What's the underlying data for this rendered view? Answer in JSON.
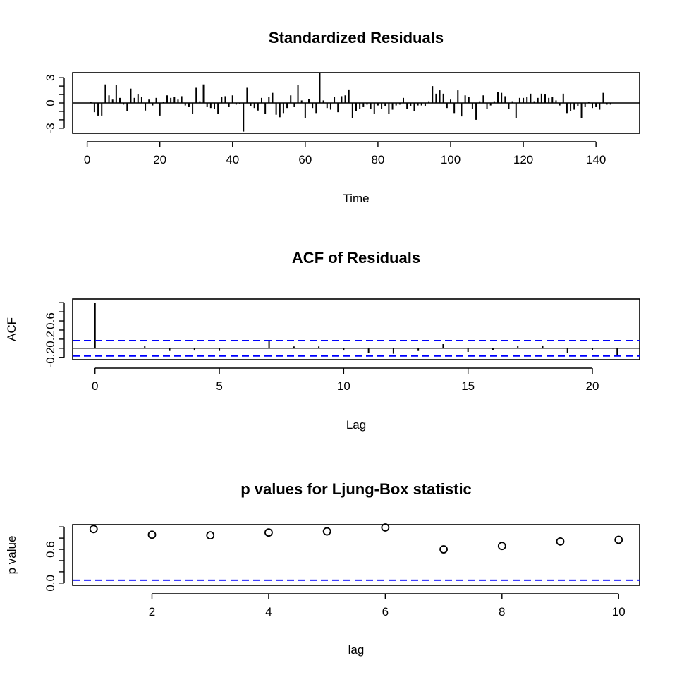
{
  "chart_data": [
    {
      "type": "bar",
      "title": "Standardized Residuals",
      "xlabel": "Time",
      "ylabel": "",
      "xlim": [
        -4,
        152
      ],
      "ylim": [
        -3.6,
        3.6
      ],
      "x_ticks": [
        0,
        20,
        40,
        60,
        80,
        100,
        120,
        140
      ],
      "y_ticks": [
        -3,
        0,
        3
      ],
      "grid": false,
      "x": [
        1,
        2,
        3,
        4,
        5,
        6,
        7,
        8,
        9,
        10,
        11,
        12,
        13,
        14,
        15,
        16,
        17,
        18,
        19,
        20,
        21,
        22,
        23,
        24,
        25,
        26,
        27,
        28,
        29,
        30,
        31,
        32,
        33,
        34,
        35,
        36,
        37,
        38,
        39,
        40,
        41,
        42,
        43,
        44,
        45,
        46,
        47,
        48,
        49,
        50,
        51,
        52,
        53,
        54,
        55,
        56,
        57,
        58,
        59,
        60,
        61,
        62,
        63,
        64,
        65,
        66,
        67,
        68,
        69,
        70,
        71,
        72,
        73,
        74,
        75,
        76,
        77,
        78,
        79,
        80,
        81,
        82,
        83,
        84,
        85,
        86,
        87,
        88,
        89,
        90,
        91,
        92,
        93,
        94,
        95,
        96,
        97,
        98,
        99,
        100,
        101,
        102,
        103,
        104,
        105,
        106,
        107,
        108,
        109,
        110,
        111,
        112,
        113,
        114,
        115,
        116,
        117,
        118,
        119,
        120,
        121,
        122,
        123,
        124,
        125,
        126,
        127,
        128,
        129,
        130,
        131,
        132,
        133,
        134,
        135,
        136,
        137,
        138,
        139,
        140,
        141,
        142,
        143,
        144
      ],
      "values": [
        0.1,
        -1.1,
        -1.5,
        -1.5,
        2.2,
        0.9,
        0.4,
        2.1,
        0.6,
        -0.2,
        -1.0,
        1.7,
        0.6,
        1.0,
        0.7,
        -0.9,
        0.4,
        -0.3,
        0.6,
        -1.5,
        0.1,
        0.9,
        0.6,
        0.7,
        0.4,
        0.8,
        -0.3,
        -0.5,
        -1.3,
        1.8,
        0.2,
        2.2,
        -0.5,
        -0.6,
        -0.7,
        -1.3,
        0.7,
        0.8,
        -0.5,
        0.9,
        -0.2,
        -0.1,
        -3.4,
        1.8,
        -0.4,
        -0.6,
        -0.9,
        0.6,
        -1.3,
        0.7,
        1.2,
        -1.4,
        -1.7,
        -1.2,
        -0.6,
        0.9,
        -0.5,
        2.1,
        0.3,
        -1.8,
        0.5,
        -0.6,
        -1.2,
        3.6,
        0.3,
        -0.6,
        -0.8,
        0.7,
        -1.1,
        0.8,
        0.9,
        1.6,
        -1.8,
        -1.0,
        -0.7,
        -0.5,
        -0.2,
        -0.7,
        -1.3,
        -0.3,
        -0.7,
        -0.4,
        -1.3,
        -0.8,
        -0.3,
        -0.2,
        0.6,
        -0.7,
        -0.4,
        -1.0,
        -0.3,
        -0.3,
        -0.4,
        0.2,
        2.0,
        1.1,
        1.5,
        1.1,
        -0.6,
        0.4,
        -1.2,
        1.5,
        -1.6,
        0.9,
        0.7,
        -0.7,
        -2.0,
        0.2,
        0.9,
        -0.7,
        -0.3,
        0.2,
        1.3,
        1.2,
        0.8,
        -0.7,
        0.2,
        -1.8,
        0.6,
        0.6,
        0.7,
        1.1,
        0.2,
        0.6,
        1.1,
        1.0,
        0.6,
        0.7,
        0.3,
        -0.3,
        1.1,
        -1.2,
        -1.0,
        -0.8,
        -0.4,
        -1.8,
        -0.5,
        0.1,
        -0.6,
        -0.5,
        -0.8,
        1.2,
        -0.2,
        -0.2
      ]
    },
    {
      "type": "bar",
      "title": "ACF of Residuals",
      "xlabel": "Lag",
      "ylabel": "ACF",
      "xlim": [
        -0.9,
        21.9
      ],
      "ylim": [
        -0.25,
        1.08
      ],
      "x_ticks": [
        0,
        5,
        10,
        15,
        20
      ],
      "y_ticks": [
        -0.2,
        0.2,
        0.6
      ],
      "y_tick_labels": [
        "-0.2",
        "0.2",
        "0.6"
      ],
      "grid": false,
      "x": [
        0,
        1,
        2,
        3,
        4,
        5,
        6,
        7,
        8,
        9,
        10,
        11,
        12,
        13,
        14,
        15,
        16,
        17,
        18,
        19,
        20,
        21
      ],
      "values": [
        1.0,
        -0.01,
        0.05,
        -0.06,
        -0.05,
        -0.06,
        0.01,
        0.17,
        0.04,
        0.04,
        -0.05,
        -0.1,
        -0.12,
        -0.06,
        0.09,
        -0.08,
        -0.04,
        0.05,
        0.06,
        -0.1,
        -0.04,
        -0.16
      ],
      "ci_upper": 0.17,
      "ci_lower": -0.17,
      "ci_color": "#0000ff"
    },
    {
      "type": "scatter",
      "title": "p values for Ljung-Box statistic",
      "xlabel": "lag",
      "ylabel": "p value",
      "xlim": [
        0.64,
        10.36
      ],
      "ylim": [
        -0.04,
        1.04
      ],
      "x_ticks": [
        2,
        4,
        6,
        8,
        10
      ],
      "y_ticks": [
        0.0,
        0.6
      ],
      "y_tick_labels": [
        "0.0",
        "0.6"
      ],
      "grid": false,
      "x": [
        1,
        2,
        3,
        4,
        5,
        6,
        7,
        8,
        9,
        10
      ],
      "values": [
        0.96,
        0.86,
        0.85,
        0.9,
        0.92,
        0.99,
        0.6,
        0.66,
        0.74,
        0.77
      ],
      "reference_line": 0.05,
      "reference_color": "#0000ff"
    }
  ]
}
